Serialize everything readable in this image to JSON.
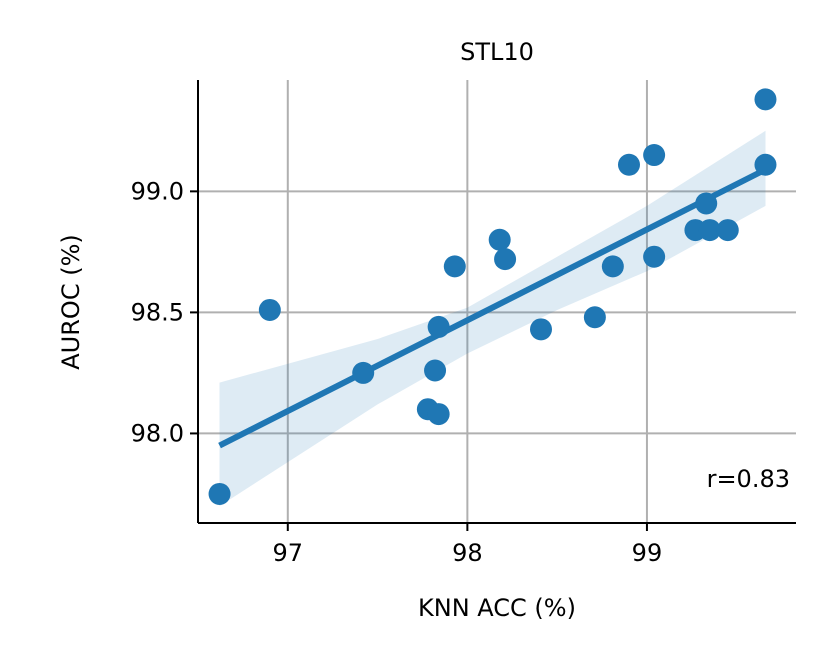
{
  "chart_data": {
    "type": "scatter",
    "title": "STL10",
    "xlabel": "KNN ACC (%)",
    "ylabel": "AUROC (%)",
    "xlim": [
      96.5,
      99.83
    ],
    "ylim": [
      97.63,
      99.46
    ],
    "xticks": [
      97,
      98,
      99
    ],
    "xtick_labels": [
      "97",
      "98",
      "99"
    ],
    "yticks": [
      98.0,
      98.5,
      99.0
    ],
    "ytick_labels": [
      "98.0",
      "98.5",
      "99.0"
    ],
    "grid": true,
    "points": [
      {
        "x": 96.62,
        "y": 97.75
      },
      {
        "x": 96.9,
        "y": 98.51
      },
      {
        "x": 97.42,
        "y": 98.25
      },
      {
        "x": 97.78,
        "y": 98.1
      },
      {
        "x": 97.82,
        "y": 98.26
      },
      {
        "x": 97.84,
        "y": 98.08
      },
      {
        "x": 97.84,
        "y": 98.44
      },
      {
        "x": 97.93,
        "y": 98.69
      },
      {
        "x": 98.18,
        "y": 98.8
      },
      {
        "x": 98.21,
        "y": 98.72
      },
      {
        "x": 98.41,
        "y": 98.43
      },
      {
        "x": 98.71,
        "y": 98.48
      },
      {
        "x": 98.81,
        "y": 98.69
      },
      {
        "x": 98.9,
        "y": 99.11
      },
      {
        "x": 99.04,
        "y": 99.15
      },
      {
        "x": 99.04,
        "y": 98.73
      },
      {
        "x": 99.27,
        "y": 98.84
      },
      {
        "x": 99.33,
        "y": 98.95
      },
      {
        "x": 99.35,
        "y": 98.84
      },
      {
        "x": 99.45,
        "y": 98.84
      },
      {
        "x": 99.66,
        "y": 99.38
      },
      {
        "x": 99.66,
        "y": 99.11
      }
    ],
    "regression": {
      "x": [
        96.62,
        99.66
      ],
      "y": [
        97.95,
        99.09
      ]
    },
    "confidence_band": {
      "x": [
        96.62,
        97.5,
        98.0,
        98.5,
        99.0,
        99.66
      ],
      "upper": [
        98.21,
        98.39,
        98.52,
        98.73,
        98.94,
        99.25
      ],
      "lower": [
        97.7,
        98.12,
        98.33,
        98.51,
        98.67,
        98.94
      ]
    },
    "annotation": "r=0.83",
    "colors": {
      "points": "#1f77b4",
      "line": "#1f77b4",
      "band": "#1f77b4",
      "grid": "#b0b0b0",
      "axis": "#000000"
    }
  }
}
